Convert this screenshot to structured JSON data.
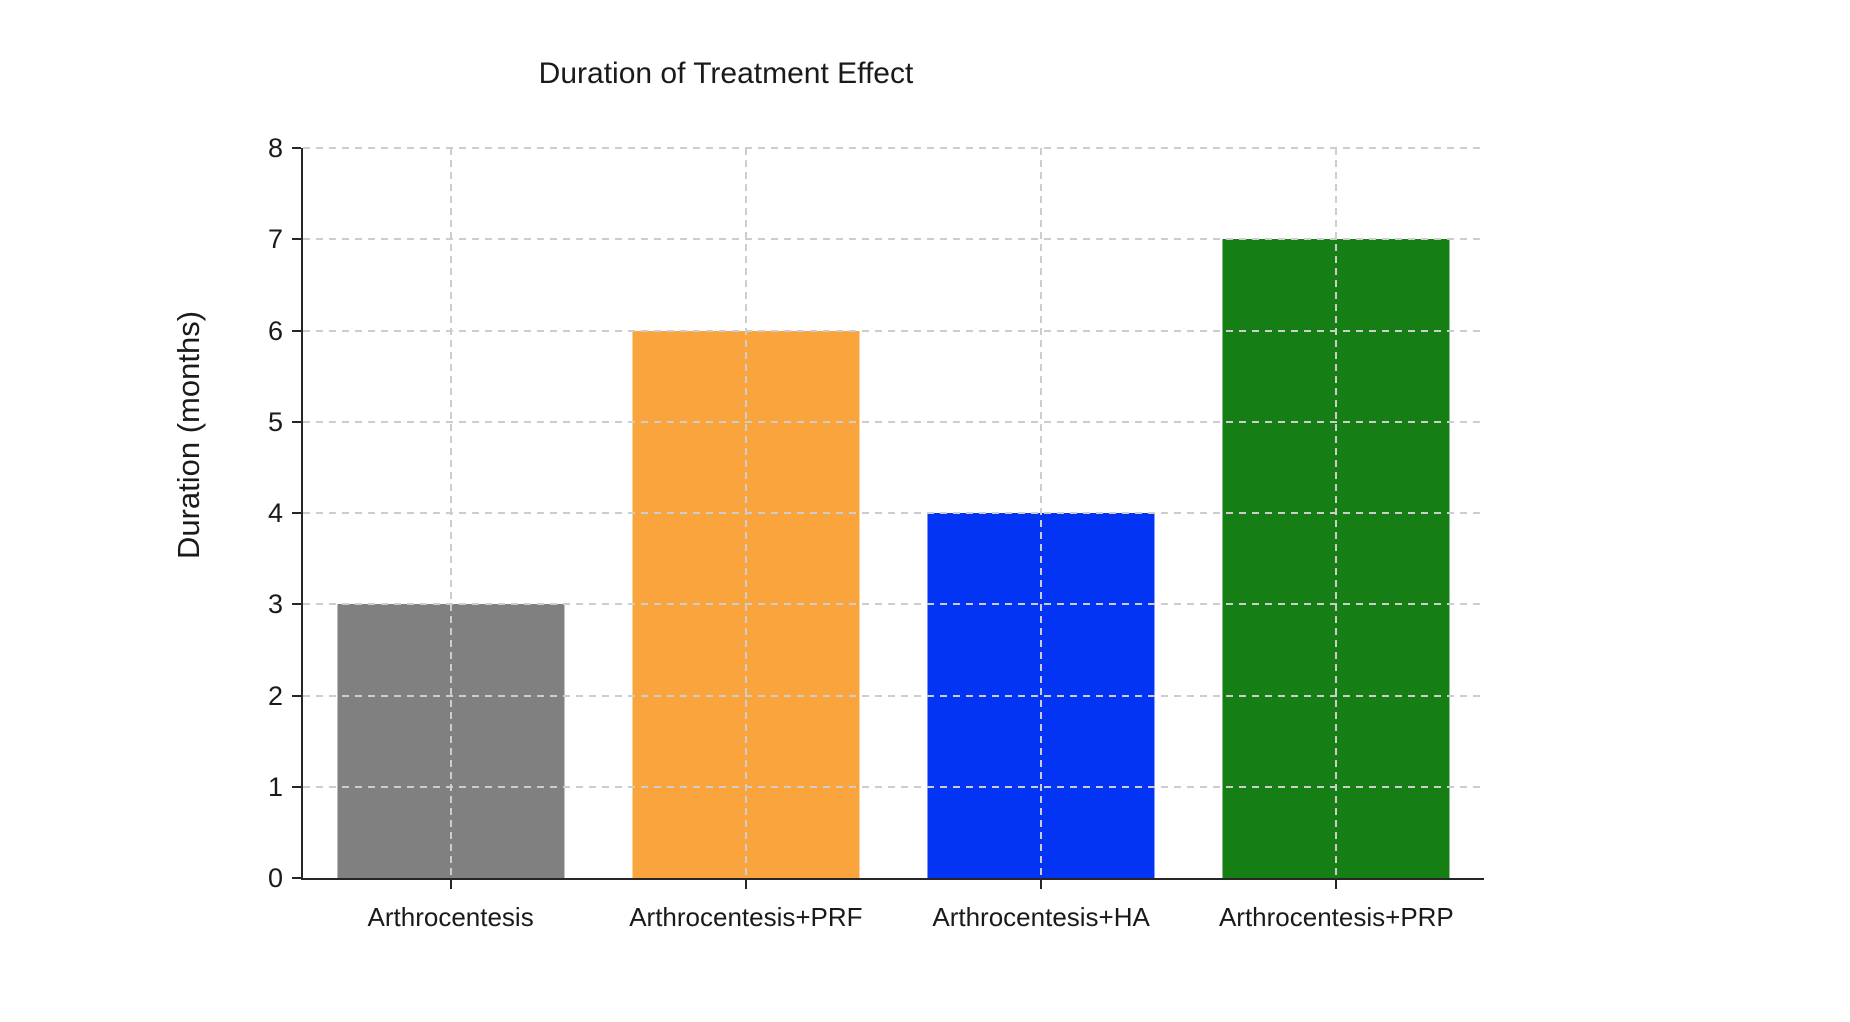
{
  "chart_data": {
    "type": "bar",
    "title": "Duration of Treatment Effect",
    "xlabel": "",
    "ylabel": "Duration (months)",
    "categories": [
      "Arthrocentesis",
      "Arthrocentesis+PRF",
      "Arthrocentesis+HA",
      "Arthrocentesis+PRP"
    ],
    "values": [
      3,
      6,
      4,
      7
    ],
    "bar_colors": [
      "#808080",
      "#F9A43C",
      "#0334F3",
      "#157E15"
    ],
    "ylim": [
      0,
      8
    ],
    "ytick_step": 1,
    "yticks": [
      0,
      1,
      2,
      3,
      4,
      5,
      6,
      7,
      8
    ],
    "grid": true,
    "grid_style": "dashed",
    "legend": false
  },
  "colors": {
    "background": "#ffffff",
    "axis": "#262626",
    "grid": "#cdcdcd",
    "text": "#1a1a1a"
  }
}
